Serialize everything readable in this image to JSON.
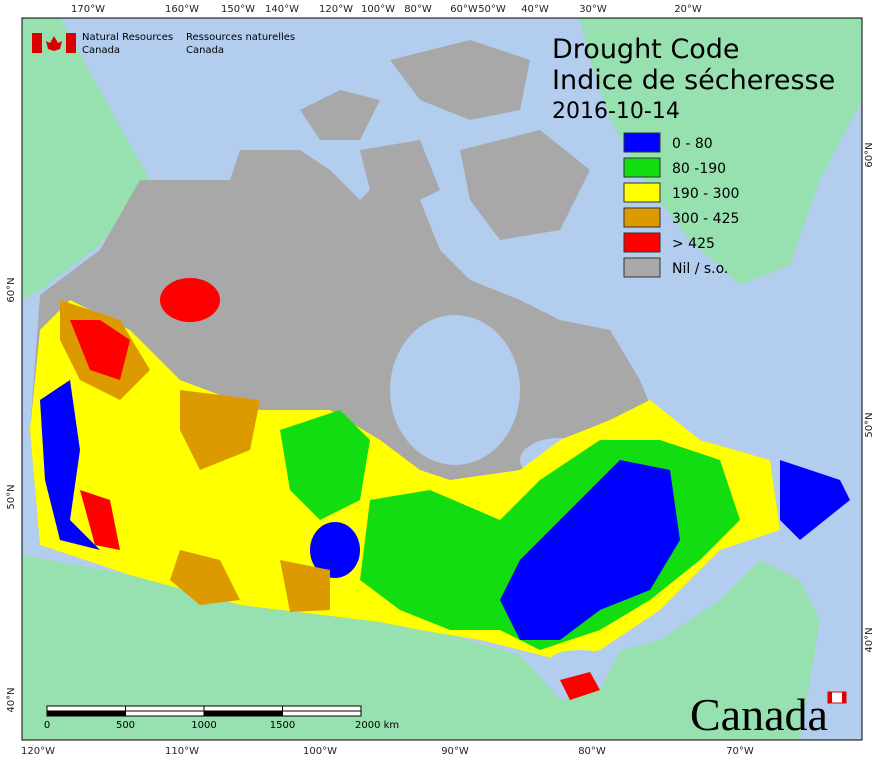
{
  "header": {
    "org_en": [
      "Natural Resources",
      "Canada"
    ],
    "org_fr": [
      "Ressources naturelles",
      "Canada"
    ]
  },
  "title": {
    "en": "Drought Code",
    "fr": "Indice de sécheresse",
    "date": "2016-10-14"
  },
  "legend": [
    {
      "label": "0 - 80",
      "color": "#0000ff"
    },
    {
      "label": "80 -190",
      "color": "#11dd11"
    },
    {
      "label": "190 - 300",
      "color": "#ffff00"
    },
    {
      "label": "300 - 425",
      "color": "#dd9900"
    },
    {
      "label": "> 425",
      "color": "#ff0000"
    },
    {
      "label": "Nil / s.o.",
      "color": "#a8a8a8"
    }
  ],
  "top_ticks": [
    "170°W",
    "160°W",
    "150°W",
    "140°W",
    "120°W",
    "100°W",
    "80°W",
    "60°W",
    "50°W",
    "40°W",
    "30°W",
    "20°W"
  ],
  "bottom_ticks": [
    "120°W",
    "110°W",
    "100°W",
    "90°W",
    "80°W",
    "70°W"
  ],
  "left_ticks": [
    "60°N",
    "50°N",
    "40°N"
  ],
  "right_ticks": [
    "60°N",
    "50°N",
    "40°N"
  ],
  "scale_bar": [
    "0",
    "500",
    "1000",
    "1500",
    "2000 km"
  ],
  "wordmark": "Canada"
}
